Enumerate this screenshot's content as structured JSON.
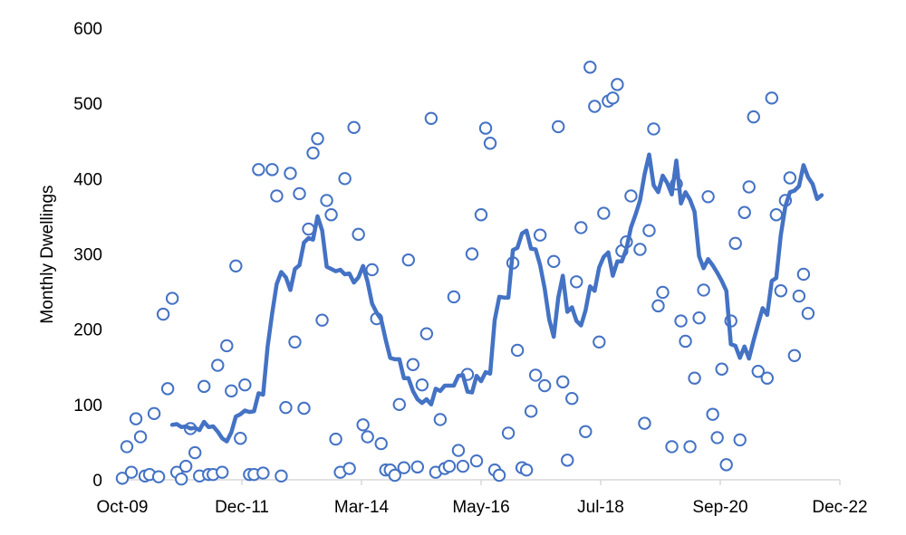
{
  "chart_data": {
    "type": "scatter",
    "title": "",
    "xlabel": "",
    "ylabel": "Monthly Dwellings",
    "ylim": [
      0,
      600
    ],
    "yticks": [
      0,
      100,
      200,
      300,
      400,
      500,
      600
    ],
    "xlim": [
      "2009-10",
      "2022-12"
    ],
    "xtick_labels": [
      "Oct-09",
      "Dec-11",
      "Mar-14",
      "May-16",
      "Jul-18",
      "Sep-20",
      "Dec-22"
    ],
    "grid": false,
    "legend": "none",
    "colors": {
      "series": "#4472C4",
      "axis": "#d9d9d9",
      "text": "#000000"
    },
    "series": [
      {
        "type": "scatter",
        "marker": "open-circle",
        "points": [
          [
            "2009-10",
            2
          ],
          [
            "2009-11",
            44
          ],
          [
            "2009-12",
            10
          ],
          [
            "2010-01",
            81
          ],
          [
            "2010-02",
            57
          ],
          [
            "2010-03",
            5
          ],
          [
            "2010-04",
            7
          ],
          [
            "2010-05",
            88
          ],
          [
            "2010-06",
            4
          ],
          [
            "2010-07",
            220
          ],
          [
            "2010-08",
            121
          ],
          [
            "2010-09",
            241
          ],
          [
            "2010-10",
            10
          ],
          [
            "2010-11",
            1
          ],
          [
            "2010-12",
            18
          ],
          [
            "2011-01",
            68
          ],
          [
            "2011-02",
            36
          ],
          [
            "2011-03",
            5
          ],
          [
            "2011-04",
            124
          ],
          [
            "2011-05",
            7
          ],
          [
            "2011-06",
            7
          ],
          [
            "2011-07",
            152
          ],
          [
            "2011-08",
            10
          ],
          [
            "2011-09",
            178
          ],
          [
            "2011-10",
            118
          ],
          [
            "2011-11",
            284
          ],
          [
            "2011-12",
            55
          ],
          [
            "2012-01",
            126
          ],
          [
            "2012-02",
            7
          ],
          [
            "2012-03",
            7
          ],
          [
            "2012-04",
            412
          ],
          [
            "2012-05",
            9
          ],
          [
            "2012-07",
            412
          ],
          [
            "2012-08",
            377
          ],
          [
            "2012-09",
            5
          ],
          [
            "2012-10",
            96
          ],
          [
            "2012-11",
            407
          ],
          [
            "2012-12",
            183
          ],
          [
            "2013-01",
            380
          ],
          [
            "2013-02",
            95
          ],
          [
            "2013-03",
            333
          ],
          [
            "2013-04",
            434
          ],
          [
            "2013-05",
            453
          ],
          [
            "2013-06",
            212
          ],
          [
            "2013-07",
            371
          ],
          [
            "2013-08",
            352
          ],
          [
            "2013-09",
            54
          ],
          [
            "2013-10",
            10
          ],
          [
            "2013-11",
            400
          ],
          [
            "2013-12",
            15
          ],
          [
            "2014-01",
            468
          ],
          [
            "2014-02",
            326
          ],
          [
            "2014-03",
            73
          ],
          [
            "2014-04",
            57
          ],
          [
            "2014-05",
            279
          ],
          [
            "2014-06",
            214
          ],
          [
            "2014-07",
            48
          ],
          [
            "2014-08",
            13
          ],
          [
            "2014-09",
            13
          ],
          [
            "2014-10",
            6
          ],
          [
            "2014-11",
            100
          ],
          [
            "2014-12",
            16
          ],
          [
            "2015-01",
            292
          ],
          [
            "2015-02",
            153
          ],
          [
            "2015-03",
            17
          ],
          [
            "2015-04",
            126
          ],
          [
            "2015-05",
            194
          ],
          [
            "2015-06",
            480
          ],
          [
            "2015-07",
            10
          ],
          [
            "2015-08",
            80
          ],
          [
            "2015-09",
            15
          ],
          [
            "2015-10",
            18
          ],
          [
            "2015-11",
            243
          ],
          [
            "2015-12",
            39
          ],
          [
            "2016-01",
            18
          ],
          [
            "2016-02",
            140
          ],
          [
            "2016-03",
            300
          ],
          [
            "2016-04",
            25
          ],
          [
            "2016-05",
            352
          ],
          [
            "2016-06",
            467
          ],
          [
            "2016-07",
            447
          ],
          [
            "2016-08",
            13
          ],
          [
            "2016-09",
            6
          ],
          [
            "2016-11",
            62
          ],
          [
            "2016-12",
            288
          ],
          [
            "2017-01",
            172
          ],
          [
            "2017-02",
            16
          ],
          [
            "2017-03",
            13
          ],
          [
            "2017-04",
            91
          ],
          [
            "2017-05",
            139
          ],
          [
            "2017-06",
            325
          ],
          [
            "2017-07",
            125
          ],
          [
            "2017-09",
            290
          ],
          [
            "2017-10",
            469
          ],
          [
            "2017-11",
            130
          ],
          [
            "2017-12",
            26
          ],
          [
            "2018-01",
            108
          ],
          [
            "2018-02",
            263
          ],
          [
            "2018-03",
            335
          ],
          [
            "2018-04",
            64
          ],
          [
            "2018-05",
            548
          ],
          [
            "2018-06",
            496
          ],
          [
            "2018-07",
            183
          ],
          [
            "2018-08",
            354
          ],
          [
            "2018-09",
            503
          ],
          [
            "2018-10",
            507
          ],
          [
            "2018-11",
            525
          ],
          [
            "2018-12",
            304
          ],
          [
            "2019-01",
            316
          ],
          [
            "2019-02",
            377
          ],
          [
            "2019-04",
            306
          ],
          [
            "2019-05",
            75
          ],
          [
            "2019-06",
            331
          ],
          [
            "2019-07",
            466
          ],
          [
            "2019-08",
            231
          ],
          [
            "2019-09",
            249
          ],
          [
            "2019-11",
            44
          ],
          [
            "2019-12",
            393
          ],
          [
            "2020-01",
            211
          ],
          [
            "2020-02",
            184
          ],
          [
            "2020-03",
            44
          ],
          [
            "2020-04",
            135
          ],
          [
            "2020-05",
            215
          ],
          [
            "2020-06",
            252
          ],
          [
            "2020-07",
            376
          ],
          [
            "2020-08",
            87
          ],
          [
            "2020-09",
            56
          ],
          [
            "2020-10",
            147
          ],
          [
            "2020-11",
            20
          ],
          [
            "2020-12",
            211
          ],
          [
            "2021-01",
            314
          ],
          [
            "2021-02",
            53
          ],
          [
            "2021-03",
            355
          ],
          [
            "2021-04",
            389
          ],
          [
            "2021-05",
            482
          ],
          [
            "2021-06",
            144
          ],
          [
            "2021-08",
            135
          ],
          [
            "2021-09",
            507
          ],
          [
            "2021-10",
            352
          ],
          [
            "2021-11",
            251
          ],
          [
            "2021-12",
            371
          ],
          [
            "2022-01",
            401
          ],
          [
            "2022-02",
            165
          ],
          [
            "2022-03",
            244
          ],
          [
            "2022-04",
            273
          ],
          [
            "2022-05",
            221
          ]
        ]
      },
      {
        "type": "line",
        "points": [
          [
            "2010-09",
            73
          ],
          [
            "2010-10",
            74
          ],
          [
            "2010-11",
            70
          ],
          [
            "2010-12",
            71
          ],
          [
            "2011-01",
            68
          ],
          [
            "2011-02",
            69
          ],
          [
            "2011-03",
            66
          ],
          [
            "2011-04",
            77
          ],
          [
            "2011-05",
            70
          ],
          [
            "2011-06",
            71
          ],
          [
            "2011-07",
            64
          ],
          [
            "2011-08",
            55
          ],
          [
            "2011-09",
            51
          ],
          [
            "2011-10",
            63
          ],
          [
            "2011-11",
            84
          ],
          [
            "2011-12",
            87
          ],
          [
            "2012-01",
            92
          ],
          [
            "2012-02",
            90
          ],
          [
            "2012-03",
            91
          ],
          [
            "2012-04",
            115
          ],
          [
            "2012-05",
            113
          ],
          [
            "2012-06",
            177
          ],
          [
            "2012-07",
            221
          ],
          [
            "2012-08",
            260
          ],
          [
            "2012-09",
            276
          ],
          [
            "2012-10",
            269
          ],
          [
            "2012-11",
            252
          ],
          [
            "2012-12",
            280
          ],
          [
            "2013-01",
            285
          ],
          [
            "2013-02",
            315
          ],
          [
            "2013-03",
            321
          ],
          [
            "2013-04",
            319
          ],
          [
            "2013-05",
            350
          ],
          [
            "2013-06",
            331
          ],
          [
            "2013-07",
            283
          ],
          [
            "2013-08",
            280
          ],
          [
            "2013-09",
            277
          ],
          [
            "2013-10",
            279
          ],
          [
            "2013-11",
            273
          ],
          [
            "2013-12",
            274
          ],
          [
            "2014-01",
            262
          ],
          [
            "2014-02",
            269
          ],
          [
            "2014-03",
            284
          ],
          [
            "2014-04",
            263
          ],
          [
            "2014-05",
            234
          ],
          [
            "2014-06",
            222
          ],
          [
            "2014-07",
            213
          ],
          [
            "2014-08",
            186
          ],
          [
            "2014-09",
            162
          ],
          [
            "2014-10",
            160
          ],
          [
            "2014-11",
            160
          ],
          [
            "2014-12",
            135
          ],
          [
            "2015-01",
            135
          ],
          [
            "2015-02",
            118
          ],
          [
            "2015-03",
            107
          ],
          [
            "2015-04",
            102
          ],
          [
            "2015-05",
            107
          ],
          [
            "2015-06",
            100
          ],
          [
            "2015-07",
            121
          ],
          [
            "2015-08",
            118
          ],
          [
            "2015-09",
            125
          ],
          [
            "2015-10",
            125
          ],
          [
            "2015-11",
            125
          ],
          [
            "2015-12",
            138
          ],
          [
            "2016-01",
            139
          ],
          [
            "2016-02",
            117
          ],
          [
            "2016-03",
            116
          ],
          [
            "2016-04",
            138
          ],
          [
            "2016-05",
            131
          ],
          [
            "2016-06",
            143
          ],
          [
            "2016-07",
            141
          ],
          [
            "2016-08",
            212
          ],
          [
            "2016-09",
            243
          ],
          [
            "2016-10",
            242
          ],
          [
            "2016-11",
            242
          ],
          [
            "2016-12",
            305
          ],
          [
            "2017-01",
            308
          ],
          [
            "2017-02",
            327
          ],
          [
            "2017-03",
            331
          ],
          [
            "2017-04",
            307
          ],
          [
            "2017-05",
            306
          ],
          [
            "2017-06",
            285
          ],
          [
            "2017-07",
            254
          ],
          [
            "2017-08",
            213
          ],
          [
            "2017-09",
            190
          ],
          [
            "2017-10",
            242
          ],
          [
            "2017-11",
            271
          ],
          [
            "2017-12",
            223
          ],
          [
            "2018-01",
            229
          ],
          [
            "2018-02",
            211
          ],
          [
            "2018-03",
            205
          ],
          [
            "2018-04",
            225
          ],
          [
            "2018-05",
            257
          ],
          [
            "2018-06",
            251
          ],
          [
            "2018-07",
            282
          ],
          [
            "2018-08",
            296
          ],
          [
            "2018-09",
            302
          ],
          [
            "2018-10",
            271
          ],
          [
            "2018-11",
            290
          ],
          [
            "2018-12",
            290
          ],
          [
            "2019-01",
            307
          ],
          [
            "2019-02",
            335
          ],
          [
            "2019-03",
            352
          ],
          [
            "2019-04",
            371
          ],
          [
            "2019-05",
            406
          ],
          [
            "2019-06",
            432
          ],
          [
            "2019-07",
            391
          ],
          [
            "2019-08",
            382
          ],
          [
            "2019-09",
            404
          ],
          [
            "2019-10",
            394
          ],
          [
            "2019-11",
            379
          ],
          [
            "2019-12",
            424
          ],
          [
            "2020-01",
            367
          ],
          [
            "2020-02",
            382
          ],
          [
            "2020-03",
            372
          ],
          [
            "2020-04",
            356
          ],
          [
            "2020-05",
            297
          ],
          [
            "2020-06",
            281
          ],
          [
            "2020-07",
            293
          ],
          [
            "2020-08",
            285
          ],
          [
            "2020-09",
            275
          ],
          [
            "2020-10",
            264
          ],
          [
            "2020-11",
            251
          ],
          [
            "2020-12",
            180
          ],
          [
            "2021-01",
            178
          ],
          [
            "2021-02",
            162
          ],
          [
            "2021-03",
            177
          ],
          [
            "2021-04",
            161
          ],
          [
            "2021-05",
            185
          ],
          [
            "2021-06",
            207
          ],
          [
            "2021-07",
            228
          ],
          [
            "2021-08",
            219
          ],
          [
            "2021-09",
            264
          ],
          [
            "2021-10",
            268
          ],
          [
            "2021-11",
            325
          ],
          [
            "2021-12",
            363
          ],
          [
            "2022-01",
            382
          ],
          [
            "2022-02",
            384
          ],
          [
            "2022-03",
            390
          ],
          [
            "2022-04",
            418
          ],
          [
            "2022-05",
            402
          ],
          [
            "2022-06",
            393
          ],
          [
            "2022-07",
            373
          ],
          [
            "2022-08",
            378
          ]
        ]
      }
    ]
  }
}
